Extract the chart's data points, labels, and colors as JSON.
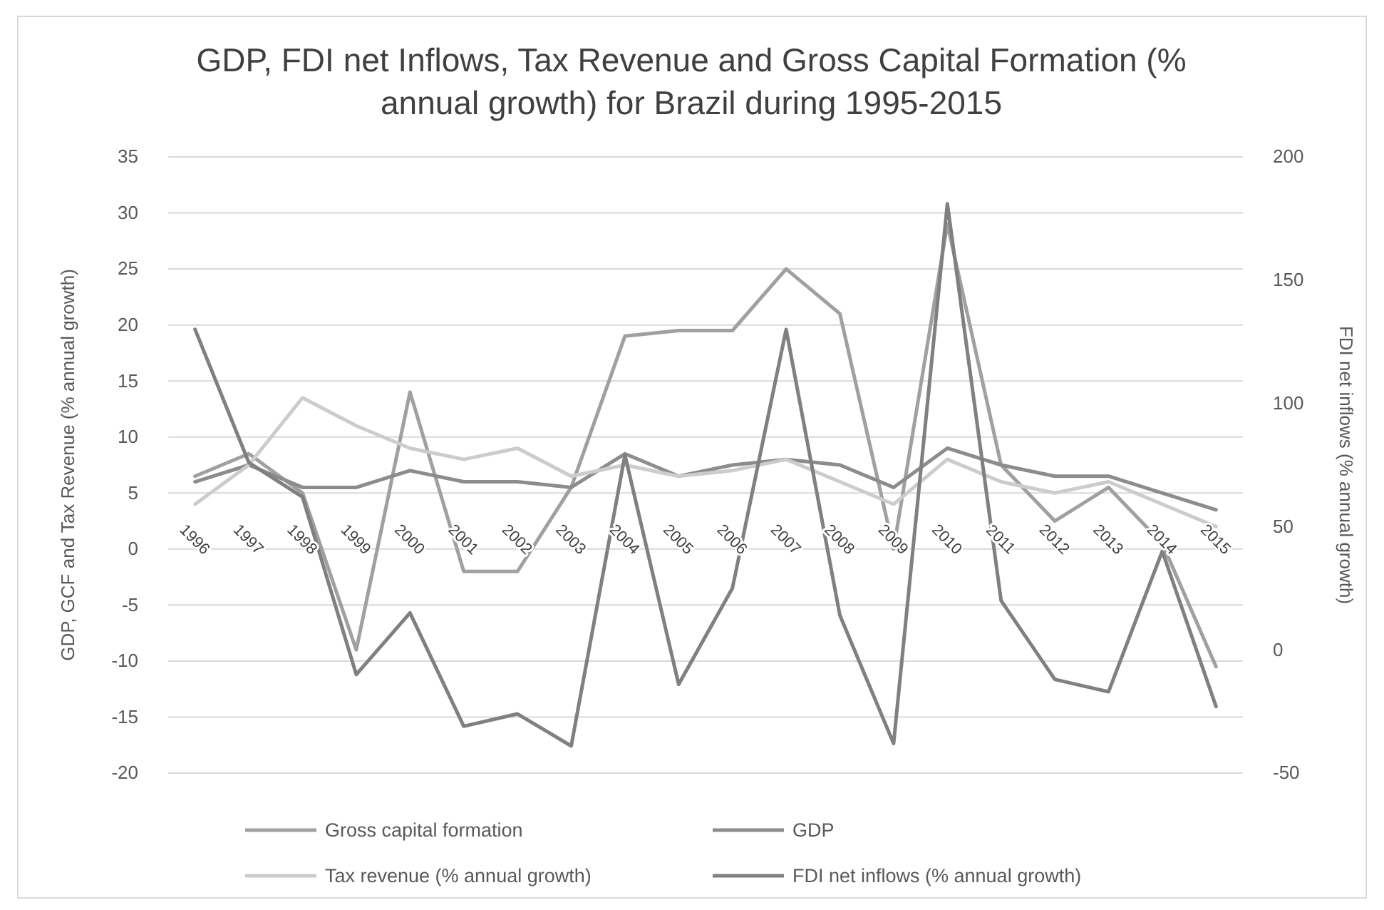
{
  "chart_data": {
    "type": "line",
    "title": "GDP, FDI net Inflows, Tax Revenue and Gross Capital Formation (% annual growth) for Brazil during 1995-2015",
    "ylabel": "GDP, GCF and Tax Revenue (% annual growth)",
    "y2label": "FDI net inflows (% annual growth)",
    "categories": [
      "1996",
      "1997",
      "1998",
      "1999",
      "2000",
      "2001",
      "2002",
      "2003",
      "2004",
      "2005",
      "2006",
      "2007",
      "2008",
      "2009",
      "2010",
      "2011",
      "2012",
      "2013",
      "2014",
      "2015"
    ],
    "series": [
      {
        "name": "Gross capital formation",
        "color": "#a0a0a0",
        "values": [
          6.5,
          8.5,
          5,
          -9,
          14,
          -2,
          -2,
          5.5,
          19,
          19.5,
          19.5,
          25,
          21,
          0,
          29,
          7.5,
          2.5,
          5.5,
          0.5,
          -10.5
        ]
      },
      {
        "name": "GDP",
        "color": "#8c8c8c",
        "values": [
          6,
          7.5,
          5.5,
          5.5,
          7,
          6,
          6,
          5.5,
          8.5,
          6.5,
          7.5,
          8,
          7.5,
          5.5,
          9,
          7.5,
          6.5,
          6.5,
          5,
          3.5
        ]
      },
      {
        "name": "Tax revenue (% annual growth)",
        "color": "#cccccc",
        "values": [
          4,
          7.5,
          13.5,
          11,
          9,
          8,
          9,
          6.5,
          7.5,
          6.5,
          7,
          8,
          6,
          4,
          8,
          6,
          5,
          6,
          4,
          2
        ]
      },
      {
        "name": "FDI net inflows (% annual growth)",
        "color": "#808080",
        "axis": "y2",
        "values": [
          130,
          76,
          62,
          -10,
          15,
          -31,
          -26,
          -39,
          79,
          -14,
          25,
          130,
          14,
          -38,
          181,
          20,
          -12,
          -17,
          40,
          -23
        ]
      }
    ],
    "ylim": [
      -20,
      35
    ],
    "yticks": [
      -20,
      -15,
      -10,
      -5,
      0,
      5,
      10,
      15,
      20,
      25,
      30,
      35
    ],
    "y2lim": [
      -50,
      200
    ],
    "y2ticks": [
      -50,
      0,
      50,
      100,
      150,
      200
    ],
    "grid": "y",
    "legend": "bottom"
  }
}
